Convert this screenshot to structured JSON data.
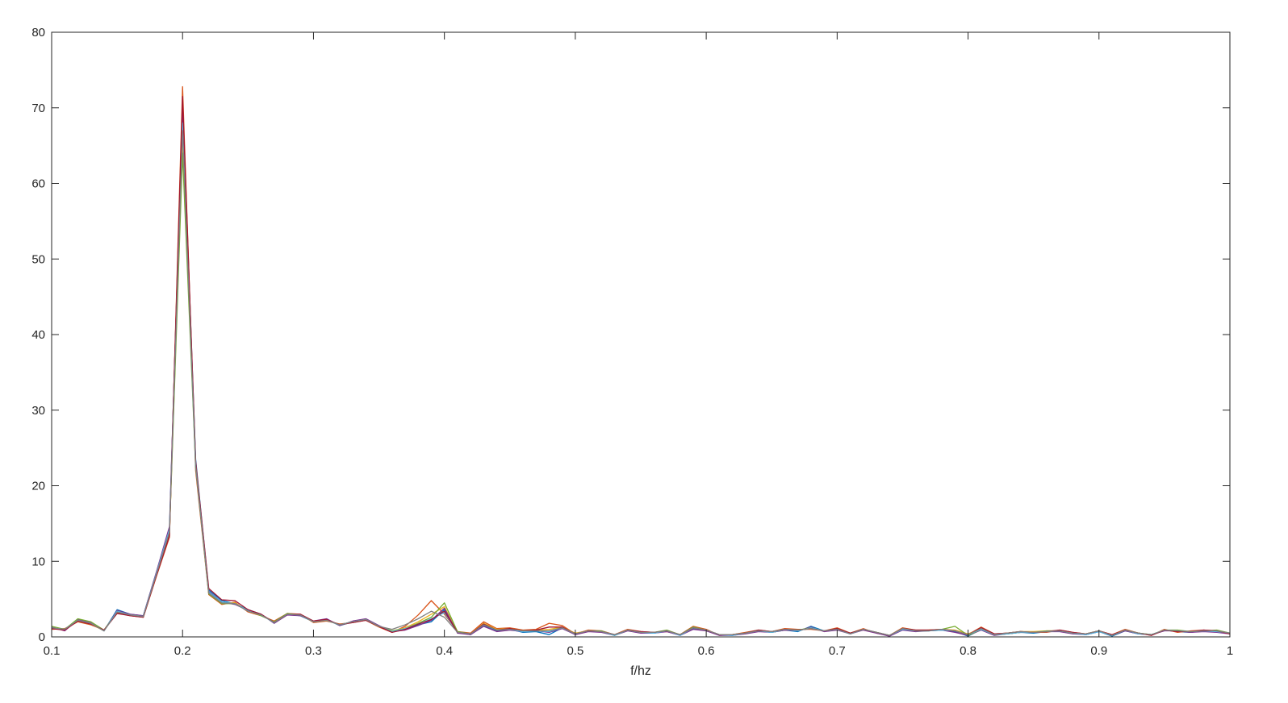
{
  "chart_data": {
    "type": "line",
    "title": "",
    "xlabel": "f/hz",
    "ylabel": "",
    "xlim": [
      0.1,
      1
    ],
    "ylim": [
      0,
      80
    ],
    "grid": false,
    "legend": "none",
    "x_ticks": [
      "0.1",
      "0.2",
      "0.3",
      "0.4",
      "0.5",
      "0.6",
      "0.7",
      "0.8",
      "0.9",
      "1"
    ],
    "y_ticks": [
      "0",
      "10",
      "20",
      "30",
      "40",
      "50",
      "60",
      "70",
      "80"
    ],
    "x": [
      0.1,
      0.11,
      0.12,
      0.13,
      0.14,
      0.15,
      0.16,
      0.17,
      0.18,
      0.19,
      0.2,
      0.21,
      0.22,
      0.23,
      0.24,
      0.25,
      0.26,
      0.27,
      0.28,
      0.29,
      0.3,
      0.31,
      0.32,
      0.33,
      0.34,
      0.35,
      0.36,
      0.37,
      0.38,
      0.39,
      0.4,
      0.41,
      0.42,
      0.43,
      0.44,
      0.45,
      0.46,
      0.47,
      0.48,
      0.49,
      0.5,
      0.51,
      0.52,
      0.53,
      0.54,
      0.55,
      0.56,
      0.57,
      0.58,
      0.59,
      0.6,
      0.61,
      0.62,
      0.63,
      0.64,
      0.65,
      0.66,
      0.67,
      0.68,
      0.69,
      0.7,
      0.71,
      0.72,
      0.73,
      0.74,
      0.75,
      0.76,
      0.77,
      0.78,
      0.79,
      0.8,
      0.81,
      0.82,
      0.83,
      0.84,
      0.85,
      0.86,
      0.87,
      0.88,
      0.89,
      0.9,
      0.91,
      0.92,
      0.93,
      0.94,
      0.95,
      0.96,
      0.97,
      0.98,
      0.99,
      1.0
    ],
    "series": [
      {
        "color": "#0072BD",
        "values": [
          1.2,
          0.9,
          2.2,
          1.8,
          0.8,
          3.6,
          3.0,
          2.8,
          8.5,
          14.0,
          70.5,
          23.5,
          6.2,
          4.8,
          4.4,
          3.6,
          3.0,
          1.8,
          3.0,
          2.8,
          2.0,
          2.3,
          1.5,
          2.0,
          2.3,
          1.4,
          0.7,
          1.0,
          1.6,
          2.0,
          3.6,
          0.6,
          0.3,
          1.5,
          0.8,
          1.0,
          0.6,
          0.7,
          0.3,
          1.2,
          0.3,
          0.8,
          0.7,
          0.2,
          0.9,
          0.6,
          0.5,
          0.8,
          0.2,
          1.1,
          0.8,
          0.3,
          0.2,
          0.5,
          0.8,
          0.6,
          0.9,
          0.7,
          1.4,
          0.8,
          1.0,
          0.4,
          1.0,
          0.6,
          0.1,
          1.0,
          0.8,
          0.8,
          0.9,
          0.7,
          0.1,
          1.0,
          0.3,
          0.4,
          0.6,
          0.5,
          0.7,
          0.8,
          0.5,
          0.3,
          0.7,
          0.1,
          0.8,
          0.4,
          0.3,
          0.9,
          0.7,
          0.6,
          0.8,
          0.7,
          0.5
        ]
      },
      {
        "color": "#D95319",
        "values": [
          1.0,
          1.1,
          2.0,
          1.6,
          0.9,
          3.2,
          2.8,
          2.6,
          8.0,
          13.2,
          72.8,
          22.0,
          5.6,
          4.3,
          4.6,
          3.3,
          2.8,
          2.1,
          3.1,
          3.0,
          1.9,
          2.1,
          1.7,
          1.9,
          2.2,
          1.3,
          0.6,
          1.4,
          2.9,
          4.8,
          3.0,
          0.7,
          0.5,
          2.0,
          1.1,
          1.2,
          0.9,
          1.0,
          1.8,
          1.5,
          0.4,
          0.9,
          0.8,
          0.3,
          1.0,
          0.7,
          0.6,
          0.7,
          0.3,
          1.4,
          1.0,
          0.2,
          0.3,
          0.6,
          0.9,
          0.7,
          1.1,
          1.0,
          1.0,
          0.8,
          1.2,
          0.5,
          1.1,
          0.5,
          0.2,
          1.2,
          0.9,
          0.9,
          1.0,
          0.8,
          0.3,
          1.3,
          0.4,
          0.5,
          0.7,
          0.6,
          0.6,
          0.9,
          0.6,
          0.4,
          0.8,
          0.3,
          1.0,
          0.5,
          0.2,
          1.0,
          0.6,
          0.8,
          0.9,
          0.8,
          0.4
        ]
      },
      {
        "color": "#EDB120",
        "values": [
          1.1,
          1.0,
          2.1,
          1.7,
          0.8,
          3.4,
          2.9,
          2.7,
          8.2,
          13.6,
          66.0,
          22.8,
          5.8,
          4.5,
          4.5,
          3.4,
          2.9,
          1.9,
          3.0,
          2.9,
          2.0,
          2.2,
          1.6,
          2.0,
          2.3,
          1.4,
          0.8,
          1.2,
          2.0,
          3.0,
          4.0,
          0.6,
          0.4,
          1.8,
          1.0,
          1.1,
          0.8,
          0.9,
          1.0,
          1.3,
          0.5,
          0.8,
          0.7,
          0.3,
          0.9,
          0.6,
          0.6,
          0.8,
          0.3,
          1.2,
          0.9,
          0.3,
          0.3,
          0.5,
          0.8,
          0.7,
          1.0,
          0.9,
          1.1,
          0.8,
          1.1,
          0.4,
          1.0,
          0.6,
          0.2,
          1.1,
          0.8,
          0.9,
          1.0,
          0.9,
          0.4,
          1.1,
          0.3,
          0.5,
          0.7,
          0.7,
          0.8,
          0.8,
          0.5,
          0.4,
          0.8,
          0.2,
          0.9,
          0.5,
          0.3,
          0.9,
          0.8,
          0.7,
          0.8,
          0.7,
          0.5
        ]
      },
      {
        "color": "#7E2F8E",
        "values": [
          1.3,
          0.8,
          2.3,
          1.9,
          0.8,
          3.5,
          3.0,
          2.8,
          8.6,
          14.6,
          69.5,
          23.0,
          6.0,
          4.6,
          4.3,
          3.5,
          3.0,
          1.8,
          2.9,
          2.8,
          2.1,
          2.4,
          1.5,
          2.1,
          2.4,
          1.5,
          0.7,
          0.9,
          1.5,
          2.2,
          3.8,
          0.5,
          0.3,
          1.4,
          0.7,
          0.9,
          0.7,
          0.8,
          0.6,
          1.1,
          0.3,
          0.7,
          0.6,
          0.2,
          0.8,
          0.5,
          0.5,
          0.7,
          0.2,
          1.0,
          0.8,
          0.2,
          0.2,
          0.4,
          0.7,
          0.6,
          0.9,
          0.8,
          1.3,
          0.7,
          0.9,
          0.4,
          0.9,
          0.5,
          0.1,
          0.9,
          0.7,
          0.8,
          0.9,
          0.6,
          0.2,
          0.9,
          0.2,
          0.4,
          0.6,
          0.6,
          0.7,
          0.7,
          0.4,
          0.3,
          0.7,
          0.2,
          0.8,
          0.4,
          0.3,
          0.8,
          0.8,
          0.6,
          0.7,
          0.6,
          0.4
        ]
      },
      {
        "color": "#77AC30",
        "values": [
          1.4,
          1.0,
          2.4,
          2.0,
          0.9,
          3.3,
          2.9,
          2.7,
          8.3,
          13.8,
          64.0,
          22.5,
          5.7,
          4.4,
          4.4,
          3.5,
          2.8,
          2.0,
          3.1,
          2.9,
          2.0,
          2.2,
          1.6,
          2.0,
          2.3,
          1.4,
          0.8,
          1.1,
          1.8,
          2.6,
          4.5,
          0.7,
          0.4,
          1.6,
          0.9,
          1.0,
          0.8,
          0.8,
          0.8,
          1.2,
          0.4,
          0.8,
          0.8,
          0.2,
          0.9,
          0.6,
          0.6,
          0.9,
          0.3,
          1.3,
          0.9,
          0.3,
          0.3,
          0.5,
          0.9,
          0.6,
          1.0,
          0.9,
          1.2,
          0.8,
          1.0,
          0.5,
          1.0,
          0.6,
          0.2,
          1.1,
          0.8,
          0.8,
          1.0,
          1.4,
          0.2,
          1.0,
          0.3,
          0.4,
          0.6,
          0.6,
          0.8,
          0.8,
          0.5,
          0.4,
          0.8,
          0.2,
          0.9,
          0.5,
          0.3,
          0.9,
          0.9,
          0.7,
          0.8,
          0.9,
          0.5
        ]
      },
      {
        "color": "#4DBEEE",
        "values": [
          1.2,
          1.0,
          2.2,
          1.8,
          0.8,
          3.4,
          2.9,
          2.7,
          8.4,
          14.2,
          68.0,
          22.6,
          5.9,
          4.6,
          4.4,
          3.5,
          2.9,
          1.9,
          3.0,
          2.9,
          2.0,
          2.2,
          1.6,
          2.0,
          2.3,
          1.4,
          0.7,
          1.1,
          1.7,
          2.4,
          3.2,
          0.6,
          0.4,
          1.6,
          0.9,
          1.0,
          0.7,
          0.8,
          0.7,
          1.2,
          0.4,
          0.8,
          0.7,
          0.2,
          0.9,
          0.6,
          0.5,
          0.8,
          0.2,
          1.2,
          0.9,
          0.3,
          0.2,
          0.5,
          0.8,
          0.6,
          1.0,
          0.8,
          1.2,
          0.8,
          1.0,
          0.4,
          1.0,
          0.6,
          0.2,
          1.0,
          0.8,
          0.8,
          0.9,
          0.8,
          0.3,
          1.0,
          0.3,
          0.4,
          0.6,
          0.6,
          0.7,
          0.8,
          0.5,
          0.3,
          0.7,
          0.2,
          0.9,
          0.4,
          0.3,
          0.9,
          0.8,
          0.7,
          0.8,
          0.7,
          0.5
        ]
      },
      {
        "color": "#A2142F",
        "values": [
          1.1,
          0.9,
          2.1,
          1.7,
          0.9,
          3.1,
          2.8,
          2.6,
          8.1,
          13.4,
          71.5,
          23.2,
          6.4,
          4.9,
          4.8,
          3.6,
          3.0,
          1.9,
          3.0,
          3.0,
          2.1,
          2.3,
          1.6,
          1.9,
          2.2,
          1.4,
          0.6,
          1.0,
          1.7,
          2.3,
          3.4,
          0.6,
          0.4,
          1.7,
          0.9,
          1.1,
          0.8,
          0.9,
          1.3,
          1.3,
          0.4,
          0.8,
          0.7,
          0.3,
          0.9,
          0.7,
          0.6,
          0.8,
          0.3,
          1.2,
          0.9,
          0.3,
          0.3,
          0.5,
          0.9,
          0.7,
          1.0,
          0.9,
          1.1,
          0.8,
          1.1,
          0.5,
          1.0,
          0.6,
          0.2,
          1.1,
          0.9,
          0.9,
          1.0,
          0.8,
          0.3,
          1.2,
          0.4,
          0.5,
          0.7,
          0.6,
          0.7,
          0.9,
          0.6,
          0.4,
          0.8,
          0.3,
          0.9,
          0.5,
          0.2,
          0.9,
          0.7,
          0.7,
          0.9,
          0.8,
          0.4
        ]
      },
      {
        "color": "#808080",
        "values": [
          1.2,
          1.0,
          2.2,
          1.8,
          0.8,
          3.3,
          2.9,
          2.7,
          8.3,
          13.9,
          67.0,
          22.7,
          5.8,
          4.5,
          4.4,
          3.4,
          2.9,
          1.9,
          3.0,
          2.9,
          2.0,
          2.2,
          1.6,
          2.0,
          2.3,
          1.4,
          1.0,
          1.6,
          2.4,
          3.4,
          2.6,
          0.6,
          0.4,
          1.6,
          0.9,
          1.0,
          0.8,
          0.8,
          0.8,
          1.2,
          0.4,
          0.8,
          0.7,
          0.3,
          0.9,
          0.6,
          0.6,
          0.8,
          0.3,
          1.2,
          0.9,
          0.3,
          0.3,
          0.5,
          0.8,
          0.7,
          1.0,
          0.9,
          1.1,
          0.8,
          1.0,
          0.4,
          1.0,
          0.6,
          0.2,
          1.1,
          0.8,
          0.8,
          1.0,
          0.8,
          0.3,
          1.1,
          0.3,
          0.5,
          0.7,
          0.6,
          0.7,
          0.8,
          0.5,
          0.4,
          0.8,
          0.2,
          0.9,
          0.5,
          0.3,
          0.9,
          0.8,
          0.7,
          0.8,
          0.8,
          0.5
        ]
      }
    ]
  }
}
